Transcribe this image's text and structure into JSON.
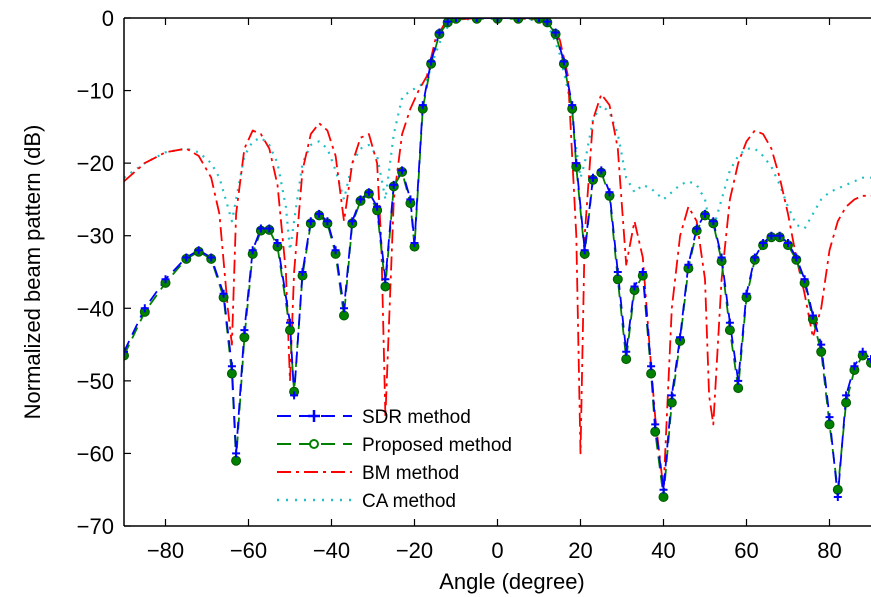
{
  "chart_data": {
    "type": "line",
    "title": "",
    "xlabel": "Angle (degree)",
    "ylabel": "Normalized beam pattern (dB)",
    "xlim": [
      -90,
      90
    ],
    "ylim": [
      -70,
      0
    ],
    "xticks": [
      -80,
      -60,
      -40,
      -20,
      0,
      20,
      40,
      60,
      80
    ],
    "yticks": [
      0,
      -10,
      -20,
      -30,
      -40,
      -50,
      -60,
      -70
    ],
    "xtick_labels": [
      "−80",
      "−60",
      "−40",
      "−20",
      "0",
      "20",
      "40",
      "60",
      "80"
    ],
    "ytick_labels": [
      "0",
      "−10",
      "−20",
      "−30",
      "−40",
      "−50",
      "−60",
      "−70"
    ],
    "grid": false,
    "legend_position": "bottom-center",
    "series": [
      {
        "name": "SDR method",
        "color": "#0000ff",
        "style": "dash",
        "marker": "plus",
        "x": [
          -90,
          -85,
          -80,
          -75,
          -72,
          -69,
          -66,
          -64,
          -63,
          -61,
          -59,
          -57,
          -55,
          -53,
          -50,
          -49,
          -47,
          -45,
          -43,
          -41,
          -39,
          -37,
          -35,
          -33,
          -31,
          -29,
          -27,
          -25,
          -23,
          -21,
          -20,
          -18,
          -16,
          -14,
          -12,
          -10,
          -5,
          0,
          5,
          10,
          12,
          14,
          16,
          18,
          19,
          21,
          23,
          25,
          27,
          29,
          31,
          33,
          35,
          37,
          38,
          40,
          42,
          44,
          46,
          48,
          50,
          52,
          54,
          56,
          58,
          60,
          62,
          64,
          66,
          68,
          70,
          72,
          74,
          76,
          78,
          80,
          82,
          84,
          86,
          88,
          90
        ],
        "y": [
          -46,
          -40,
          -36,
          -33,
          -32,
          -33,
          -38,
          -48,
          -60,
          -43,
          -32,
          -29,
          -29,
          -31,
          -42,
          -52,
          -35,
          -28,
          -27,
          -28,
          -32,
          -40,
          -28,
          -25,
          -24,
          -26,
          -36,
          -23,
          -21,
          -25,
          -31,
          -12,
          -6,
          -2,
          -0.5,
          0,
          0,
          0,
          0,
          0,
          -0.5,
          -2,
          -6,
          -12,
          -20,
          -32,
          -22,
          -21,
          -24,
          -35,
          -46,
          -37,
          -35,
          -48,
          -56,
          -65,
          -52,
          -44,
          -34,
          -29,
          -27,
          -28,
          -33,
          -42,
          -50,
          -38,
          -33,
          -31,
          -30,
          -30,
          -31,
          -33,
          -36,
          -41,
          -45,
          -55,
          -66,
          -52,
          -48,
          -46,
          -47
        ]
      },
      {
        "name": "Proposed method",
        "color": "#008000",
        "style": "dash",
        "marker": "circle",
        "x": [
          -90,
          -85,
          -80,
          -75,
          -72,
          -69,
          -66,
          -64,
          -63,
          -61,
          -59,
          -57,
          -55,
          -53,
          -50,
          -49,
          -47,
          -45,
          -43,
          -41,
          -39,
          -37,
          -35,
          -33,
          -31,
          -29,
          -27,
          -25,
          -23,
          -21,
          -20,
          -18,
          -16,
          -14,
          -12,
          -10,
          -5,
          0,
          5,
          10,
          12,
          14,
          16,
          18,
          19,
          21,
          23,
          25,
          27,
          29,
          31,
          33,
          35,
          37,
          38,
          40,
          42,
          44,
          46,
          48,
          50,
          52,
          54,
          56,
          58,
          60,
          62,
          64,
          66,
          68,
          70,
          72,
          74,
          76,
          78,
          80,
          82,
          84,
          86,
          88,
          90
        ],
        "y": [
          -46.5,
          -40.5,
          -36.5,
          -33.2,
          -32.2,
          -33.2,
          -38.5,
          -49,
          -61,
          -44,
          -32.5,
          -29.3,
          -29.2,
          -31.5,
          -43,
          -51.5,
          -35.5,
          -28.3,
          -27.2,
          -28.3,
          -32.5,
          -41,
          -28.3,
          -25.2,
          -24.2,
          -26.5,
          -37,
          -23.2,
          -21.2,
          -25.5,
          -31.5,
          -12.5,
          -6.3,
          -2.2,
          -0.6,
          -0.1,
          -0.1,
          -0.1,
          -0.1,
          -0.1,
          -0.6,
          -2.2,
          -6.3,
          -12.5,
          -20.5,
          -32.5,
          -22.3,
          -21.3,
          -24.5,
          -36,
          -47,
          -37.5,
          -35.5,
          -49,
          -57,
          -66,
          -53,
          -44.5,
          -34.5,
          -29.3,
          -27.2,
          -28.3,
          -33.5,
          -43,
          -51,
          -38.5,
          -33.3,
          -31.3,
          -30.2,
          -30.2,
          -31.3,
          -33.3,
          -36.5,
          -41.5,
          -46,
          -56,
          -65,
          -53,
          -48.5,
          -46.5,
          -47.5
        ]
      },
      {
        "name": "BM method",
        "color": "#ff0000",
        "style": "dashdot",
        "marker": "none",
        "x": [
          -90,
          -85,
          -80,
          -75,
          -72,
          -69,
          -67,
          -65,
          -64,
          -63,
          -61,
          -59,
          -57,
          -55,
          -53,
          -51,
          -50,
          -49,
          -47,
          -45,
          -43,
          -41,
          -39,
          -37,
          -35,
          -33,
          -31,
          -29,
          -28,
          -27,
          -25,
          -23,
          -21,
          -19,
          -17,
          -15,
          -13,
          -11,
          -5,
          0,
          5,
          11,
          13,
          15,
          17,
          19,
          20,
          21,
          23,
          25,
          27,
          29,
          31,
          33,
          35,
          37,
          38,
          40,
          42,
          44,
          46,
          48,
          50,
          51,
          52,
          54,
          56,
          58,
          60,
          62,
          64,
          66,
          68,
          70,
          72,
          74,
          76,
          78,
          80,
          82,
          84,
          86,
          88,
          90
        ],
        "y": [
          -22.5,
          -20,
          -18.5,
          -18,
          -19,
          -22,
          -27,
          -40,
          -45,
          -27,
          -18,
          -15.5,
          -16,
          -18,
          -23,
          -35,
          -50,
          -35,
          -21,
          -16,
          -14.5,
          -15.5,
          -19,
          -28,
          -20,
          -16.5,
          -16,
          -20,
          -31,
          -55,
          -25,
          -16,
          -12.5,
          -10,
          -8,
          -3,
          -1,
          -0.3,
          0,
          0,
          0,
          -0.3,
          -1,
          -3,
          -8,
          -30,
          -60,
          -30,
          -14,
          -10.5,
          -12,
          -18,
          -34,
          -28,
          -33,
          -48,
          -55,
          -65,
          -40,
          -30,
          -26,
          -28,
          -36,
          -52,
          -56,
          -36,
          -25,
          -20,
          -17,
          -15.5,
          -16,
          -18,
          -22,
          -27,
          -33,
          -38,
          -44,
          -40,
          -32,
          -28,
          -26,
          -25,
          -24.5,
          -24.5
        ]
      },
      {
        "name": "CA method",
        "color": "#20c0c8",
        "style": "dot",
        "marker": "none",
        "x": [
          -90,
          -85,
          -80,
          -75,
          -72,
          -69,
          -67,
          -65,
          -64,
          -63,
          -61,
          -59,
          -57,
          -55,
          -53,
          -51,
          -50,
          -49,
          -47,
          -45,
          -43,
          -41,
          -39,
          -37,
          -35,
          -33,
          -31,
          -29,
          -28,
          -27,
          -25,
          -23,
          -21,
          -19,
          -17,
          -15,
          -13,
          -11,
          -5,
          0,
          5,
          11,
          13,
          15,
          17,
          19,
          20,
          21,
          23,
          25,
          27,
          29,
          31,
          33,
          35,
          37,
          38,
          40,
          42,
          44,
          46,
          48,
          50,
          51,
          52,
          54,
          56,
          58,
          60,
          62,
          64,
          66,
          68,
          70,
          72,
          74,
          76,
          78,
          80,
          82,
          84,
          86,
          88,
          90
        ],
        "y": [
          -22,
          -20,
          -18.5,
          -18,
          -18.5,
          -20,
          -22,
          -26,
          -28,
          -25,
          -19,
          -17,
          -16.5,
          -17.5,
          -20,
          -26,
          -32,
          -28,
          -20,
          -17.5,
          -17,
          -18,
          -21,
          -25,
          -20,
          -18,
          -17.5,
          -19,
          -22,
          -25,
          -16,
          -11,
          -10,
          -9.5,
          -8.5,
          -5,
          -2,
          -0.5,
          0,
          0,
          0,
          -0.5,
          -2,
          -5,
          -10,
          -18,
          -22,
          -20,
          -14,
          -12,
          -13,
          -16,
          -22,
          -24,
          -23,
          -23.5,
          -24,
          -25,
          -24,
          -23,
          -22.5,
          -23,
          -25,
          -28,
          -29,
          -25,
          -21,
          -19,
          -18,
          -18,
          -19,
          -20.5,
          -23,
          -26,
          -28.5,
          -29,
          -27,
          -25,
          -24,
          -23.5,
          -23,
          -22.5,
          -22,
          -22
        ]
      }
    ]
  }
}
